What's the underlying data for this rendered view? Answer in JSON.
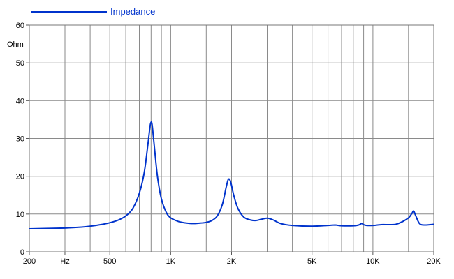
{
  "chart_data": {
    "type": "line",
    "x_scale": "log",
    "x_unit": "Hz",
    "xlim": [
      200,
      20000
    ],
    "y_unit": "Ohm",
    "ylim": [
      0,
      60
    ],
    "grid": true,
    "legend_position": "top-left",
    "x_tick_labels": [
      {
        "value": 200,
        "label": "200"
      },
      {
        "value": 300,
        "label": "Hz"
      },
      {
        "value": 500,
        "label": "500"
      },
      {
        "value": 1000,
        "label": "1K"
      },
      {
        "value": 2000,
        "label": "2K"
      },
      {
        "value": 5000,
        "label": "5K"
      },
      {
        "value": 10000,
        "label": "10K"
      },
      {
        "value": 20000,
        "label": "20K"
      }
    ],
    "y_ticks": [
      0,
      10,
      20,
      30,
      40,
      50,
      60
    ],
    "y_tick_labels": [
      "0",
      "10",
      "20",
      "30",
      "40",
      "50",
      "60"
    ],
    "x_gridlines": [
      300,
      400,
      500,
      600,
      700,
      800,
      900,
      1000,
      1500,
      2000,
      3000,
      4000,
      5000,
      6000,
      7000,
      8000,
      9000,
      10000,
      15000,
      20000
    ],
    "series": [
      {
        "name": "Impedance",
        "color": "#0033cc",
        "points": [
          [
            200,
            6.1
          ],
          [
            250,
            6.2
          ],
          [
            300,
            6.3
          ],
          [
            350,
            6.5
          ],
          [
            400,
            6.8
          ],
          [
            450,
            7.2
          ],
          [
            500,
            7.7
          ],
          [
            550,
            8.4
          ],
          [
            600,
            9.5
          ],
          [
            650,
            11.5
          ],
          [
            700,
            15.5
          ],
          [
            740,
            21
          ],
          [
            770,
            28
          ],
          [
            790,
            33
          ],
          [
            800,
            34.3
          ],
          [
            810,
            33.5
          ],
          [
            830,
            28
          ],
          [
            860,
            20
          ],
          [
            900,
            14
          ],
          [
            950,
            10.5
          ],
          [
            1000,
            9
          ],
          [
            1100,
            8
          ],
          [
            1200,
            7.6
          ],
          [
            1300,
            7.5
          ],
          [
            1400,
            7.6
          ],
          [
            1500,
            7.8
          ],
          [
            1600,
            8.3
          ],
          [
            1700,
            9.5
          ],
          [
            1800,
            12.5
          ],
          [
            1880,
            17
          ],
          [
            1930,
            19.2
          ],
          [
            1980,
            18.5
          ],
          [
            2050,
            15
          ],
          [
            2150,
            11.5
          ],
          [
            2300,
            9.2
          ],
          [
            2500,
            8.4
          ],
          [
            2650,
            8.3
          ],
          [
            2800,
            8.6
          ],
          [
            3000,
            8.9
          ],
          [
            3200,
            8.5
          ],
          [
            3500,
            7.5
          ],
          [
            4000,
            7.0
          ],
          [
            5000,
            6.8
          ],
          [
            6000,
            7.0
          ],
          [
            6500,
            7.1
          ],
          [
            7000,
            6.9
          ],
          [
            8000,
            6.9
          ],
          [
            8500,
            7.1
          ],
          [
            8800,
            7.5
          ],
          [
            9000,
            7.2
          ],
          [
            9300,
            7.0
          ],
          [
            10000,
            7.0
          ],
          [
            11000,
            7.2
          ],
          [
            12000,
            7.2
          ],
          [
            13000,
            7.3
          ],
          [
            14000,
            8.0
          ],
          [
            15000,
            9.0
          ],
          [
            15600,
            10.2
          ],
          [
            15900,
            10.8
          ],
          [
            16300,
            9.5
          ],
          [
            17000,
            7.5
          ],
          [
            18000,
            7.1
          ],
          [
            20000,
            7.3
          ]
        ]
      }
    ]
  }
}
